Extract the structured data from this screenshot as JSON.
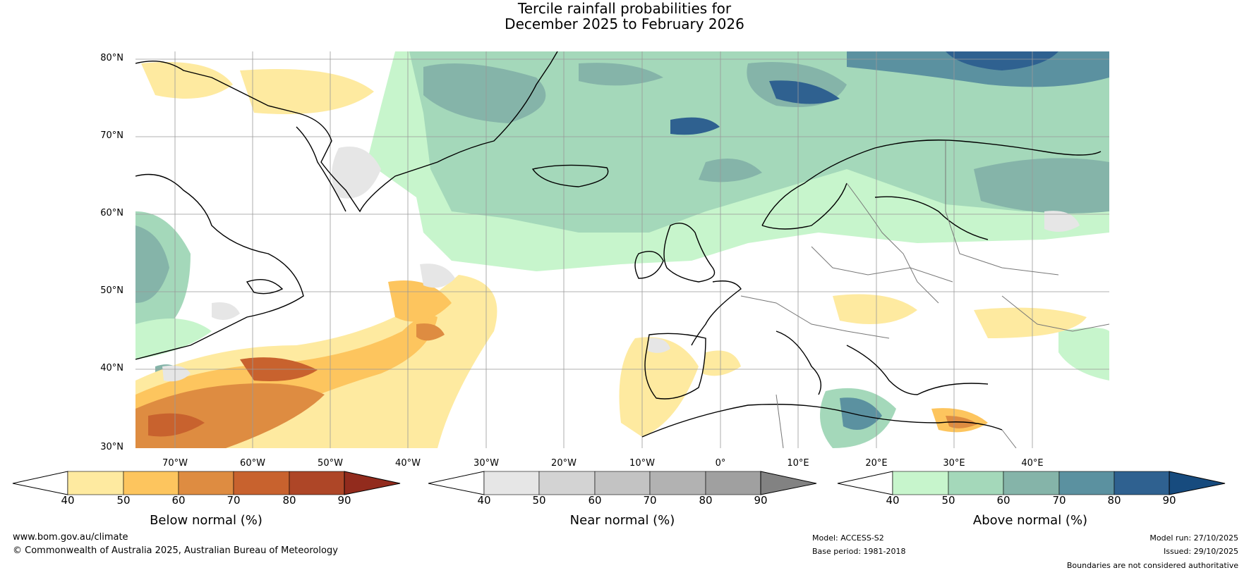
{
  "title": {
    "line1": "Tercile rainfall probabilities for",
    "line2": "December 2025 to February 2026"
  },
  "axes": {
    "lat_labels": [
      "80°N",
      "70°N",
      "60°N",
      "50°N",
      "40°N",
      "30°N"
    ],
    "lon_labels": [
      "70°W",
      "60°W",
      "50°W",
      "40°W",
      "30°W",
      "20°W",
      "10°W",
      "0°",
      "10°E",
      "20°E",
      "30°E",
      "40°E"
    ]
  },
  "colorbars": [
    {
      "label": "Below normal (%)",
      "ticks": [
        "40",
        "50",
        "60",
        "70",
        "80",
        "90"
      ],
      "colors": [
        "#ffffff",
        "#feeaa0",
        "#fdc55e",
        "#de8c41",
        "#c8622e",
        "#ae4627",
        "#922b1d"
      ]
    },
    {
      "label": "Near normal (%)",
      "ticks": [
        "40",
        "50",
        "60",
        "70",
        "80",
        "90"
      ],
      "colors": [
        "#ffffff",
        "#e6e6e6",
        "#d3d3d3",
        "#c3c3c3",
        "#b2b2b2",
        "#a0a0a0",
        "#828282"
      ]
    },
    {
      "label": "Above normal (%)",
      "ticks": [
        "40",
        "50",
        "60",
        "70",
        "80",
        "90"
      ],
      "colors": [
        "#ffffff",
        "#c7f5cc",
        "#a4d8ba",
        "#85b4a9",
        "#5b91a0",
        "#2f6190",
        "#174b7e"
      ]
    }
  ],
  "footer": {
    "website": "www.bom.gov.au/climate",
    "copyright": "© Commonwealth of Australia 2025, Australian Bureau of Meteorology",
    "model": "Model: ACCESS-S2",
    "base_period": "Base period: 1981-2018",
    "model_run": "Model run: 27/10/2025",
    "issued": "Issued: 29/10/2025",
    "disclaimer": "Boundaries are not considered authoritative"
  }
}
